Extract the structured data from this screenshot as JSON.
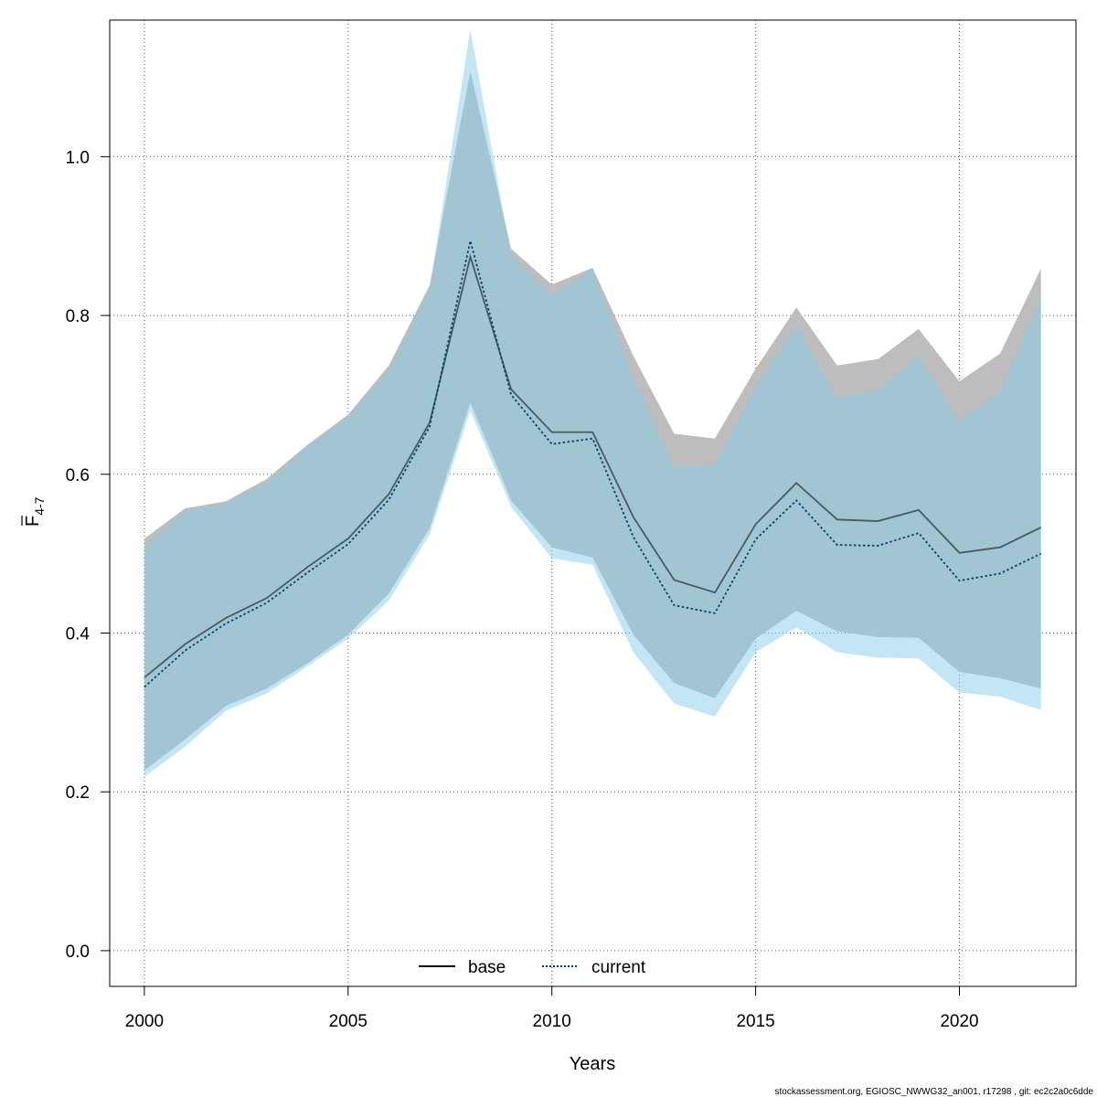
{
  "chart_data": {
    "type": "area",
    "x": [
      2000,
      2001,
      2002,
      2003,
      2004,
      2005,
      2006,
      2007,
      2008,
      2009,
      2010,
      2011,
      2012,
      2013,
      2014,
      2015,
      2016,
      2017,
      2018,
      2019,
      2020,
      2021,
      2022
    ],
    "series": [
      {
        "name": "base",
        "line_style": "solid",
        "color": "#000000",
        "band_color": "#bdbdbd",
        "values": [
          0.344,
          0.386,
          0.419,
          0.444,
          0.483,
          0.519,
          0.575,
          0.665,
          0.874,
          0.707,
          0.653,
          0.653,
          0.546,
          0.467,
          0.451,
          0.537,
          0.589,
          0.543,
          0.541,
          0.555,
          0.501,
          0.508,
          0.533
        ],
        "lower": [
          0.227,
          0.266,
          0.308,
          0.33,
          0.362,
          0.398,
          0.45,
          0.532,
          0.69,
          0.567,
          0.508,
          0.495,
          0.398,
          0.337,
          0.318,
          0.393,
          0.428,
          0.402,
          0.395,
          0.394,
          0.351,
          0.343,
          0.33
        ],
        "upper": [
          0.519,
          0.557,
          0.566,
          0.594,
          0.637,
          0.675,
          0.737,
          0.838,
          1.108,
          0.884,
          0.839,
          0.86,
          0.749,
          0.651,
          0.645,
          0.733,
          0.81,
          0.737,
          0.745,
          0.783,
          0.717,
          0.752,
          0.859
        ]
      },
      {
        "name": "current",
        "line_style": "dotted",
        "color": "#00446b",
        "band_color": "#87ceeb",
        "values": [
          0.332,
          0.378,
          0.412,
          0.438,
          0.476,
          0.512,
          0.568,
          0.66,
          0.894,
          0.7,
          0.638,
          0.645,
          0.521,
          0.435,
          0.425,
          0.518,
          0.567,
          0.511,
          0.51,
          0.526,
          0.466,
          0.475,
          0.5
        ],
        "lower": [
          0.219,
          0.257,
          0.302,
          0.324,
          0.358,
          0.393,
          0.441,
          0.524,
          0.68,
          0.559,
          0.494,
          0.486,
          0.376,
          0.311,
          0.295,
          0.376,
          0.407,
          0.376,
          0.369,
          0.368,
          0.325,
          0.32,
          0.303
        ],
        "upper": [
          0.508,
          0.554,
          0.563,
          0.589,
          0.635,
          0.672,
          0.731,
          0.834,
          1.16,
          0.874,
          0.825,
          0.859,
          0.72,
          0.609,
          0.612,
          0.71,
          0.787,
          0.695,
          0.706,
          0.749,
          0.667,
          0.703,
          0.823
        ]
      }
    ],
    "xlabel": "Years",
    "ylabel": "F",
    "ylabel_subscript": "4-7",
    "xlim": [
      1999.15,
      2022.86
    ],
    "ylim": [
      -0.045,
      1.172
    ],
    "xticks": [
      2000,
      2005,
      2010,
      2015,
      2020
    ],
    "yticks": [
      0.0,
      0.2,
      0.4,
      0.6,
      0.8,
      1.0
    ],
    "ytick_labels": [
      "0.0",
      "0.2",
      "0.4",
      "0.6",
      "0.8",
      "1.0"
    ],
    "grid": true,
    "legend_position": "bottom-center",
    "footer": "stockassessment.org, EGIOSC_NWWG32_an001, r17298 , git: ec2c2a0c6dde"
  }
}
